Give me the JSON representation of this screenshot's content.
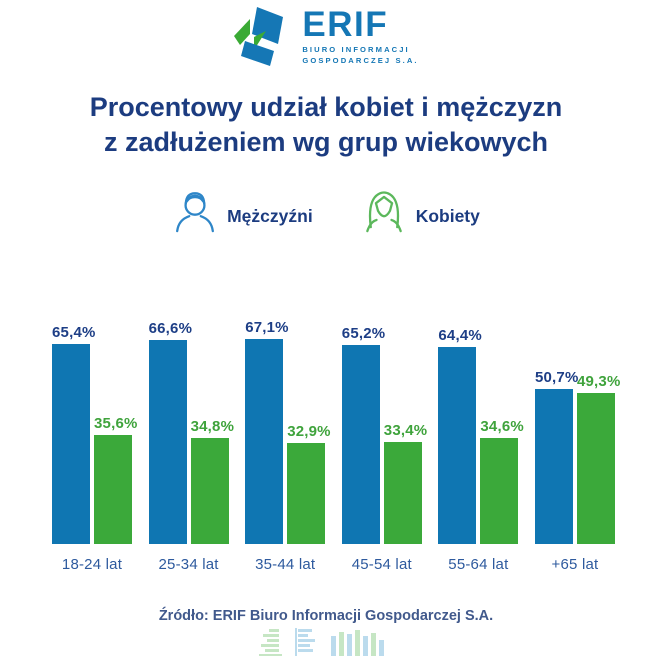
{
  "logo": {
    "brand": "ERIF",
    "subtitle_line1": "BIURO INFORMACJI",
    "subtitle_line2": "GOSPODARCZEJ S.A.",
    "icon": "erif-cube-logo-icon"
  },
  "title": {
    "line1": "Procentowy udział kobiet i mężczyzn",
    "line2": "z zadłużeniem wg grup wiekowych"
  },
  "legend": {
    "men_label": "Mężczyźni",
    "women_label": "Kobiety",
    "men_icon": "man-outline-icon",
    "women_icon": "woman-outline-icon"
  },
  "chart_data": {
    "type": "bar",
    "title": "Procentowy udział kobiet i mężczyzn z zadłużeniem wg grup wiekowych",
    "categories": [
      "18-24 lat",
      "25-34 lat",
      "35-44 lat",
      "45-54 lat",
      "55-64 lat",
      "+65 lat"
    ],
    "series": [
      {
        "name": "Mężczyźni",
        "color": "#0f76b2",
        "label_color": "#1d3e86",
        "values": [
          65.4,
          66.6,
          67.1,
          65.2,
          64.4,
          50.7
        ],
        "labels": [
          "65,4%",
          "66,6%",
          "67,1%",
          "65,2%",
          "64,4%",
          "50,7%"
        ]
      },
      {
        "name": "Kobiety",
        "color": "#3ba93a",
        "label_color": "#3fa33c",
        "values": [
          35.6,
          34.8,
          32.9,
          33.4,
          34.6,
          49.3
        ],
        "labels": [
          "35,6%",
          "34,8%",
          "32,9%",
          "33,4%",
          "34,6%",
          "49,3%"
        ]
      }
    ],
    "ylim": [
      0,
      70
    ],
    "value_format": "percent-comma-decimal",
    "grid": false,
    "axes_shown": false,
    "legend_position": "top"
  },
  "footer": {
    "source": "Źródło: ERIF Biuro Informacji Gospodarczej S.A.",
    "watermark_icons": [
      "pyramid-bars-green-icon",
      "pyramid-bars-blue-icon",
      "mini-bar-chart-icon"
    ]
  },
  "colors": {
    "brand_blue": "#1577b5",
    "brand_green": "#3aaa35",
    "title_navy": "#1c3c80",
    "axis_label_blue": "#2e5a9e",
    "source_text": "#41598c",
    "bar_men": "#0f76b2",
    "bar_women": "#3ba93a",
    "legend_icon_men": "#2e86c8",
    "legend_icon_women": "#5cb85c",
    "watermark_blue": "#7ab8dc",
    "watermark_green": "#8fcf8a"
  }
}
